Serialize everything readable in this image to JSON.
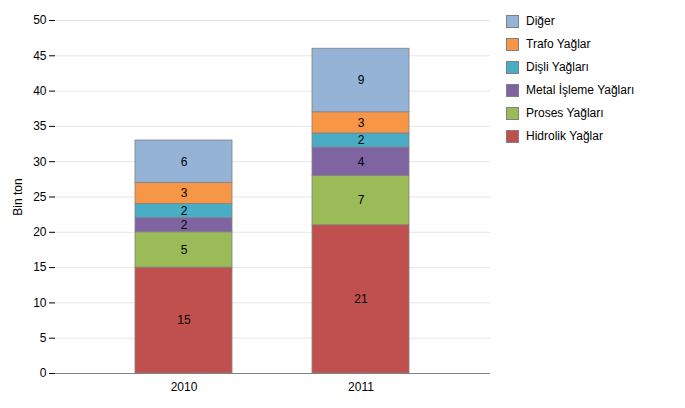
{
  "chart_data": {
    "type": "bar",
    "stacked": true,
    "data_labels": true,
    "categories": [
      "2010",
      "2011"
    ],
    "series": [
      {
        "name": "Hidrolik Yağlar",
        "values": [
          15,
          21
        ],
        "color": "#C0504D"
      },
      {
        "name": "Proses Yağları",
        "values": [
          5,
          7
        ],
        "color": "#9BBB59"
      },
      {
        "name": "Metal İşleme Yağları",
        "values": [
          2,
          4
        ],
        "color": "#8064A2"
      },
      {
        "name": "Dişli Yağları",
        "values": [
          2,
          2
        ],
        "color": "#4BACC6"
      },
      {
        "name": "Trafo Yağlar",
        "values": [
          3,
          3
        ],
        "color": "#F79646"
      },
      {
        "name": "Diğer",
        "values": [
          6,
          9
        ],
        "color": "#95B3D7"
      }
    ],
    "ylabel": "Bin ton",
    "ylim": [
      0,
      50
    ],
    "yticks": [
      0,
      5,
      10,
      15,
      20,
      25,
      30,
      35,
      40,
      45,
      50
    ],
    "grid": true,
    "legend": "right"
  }
}
